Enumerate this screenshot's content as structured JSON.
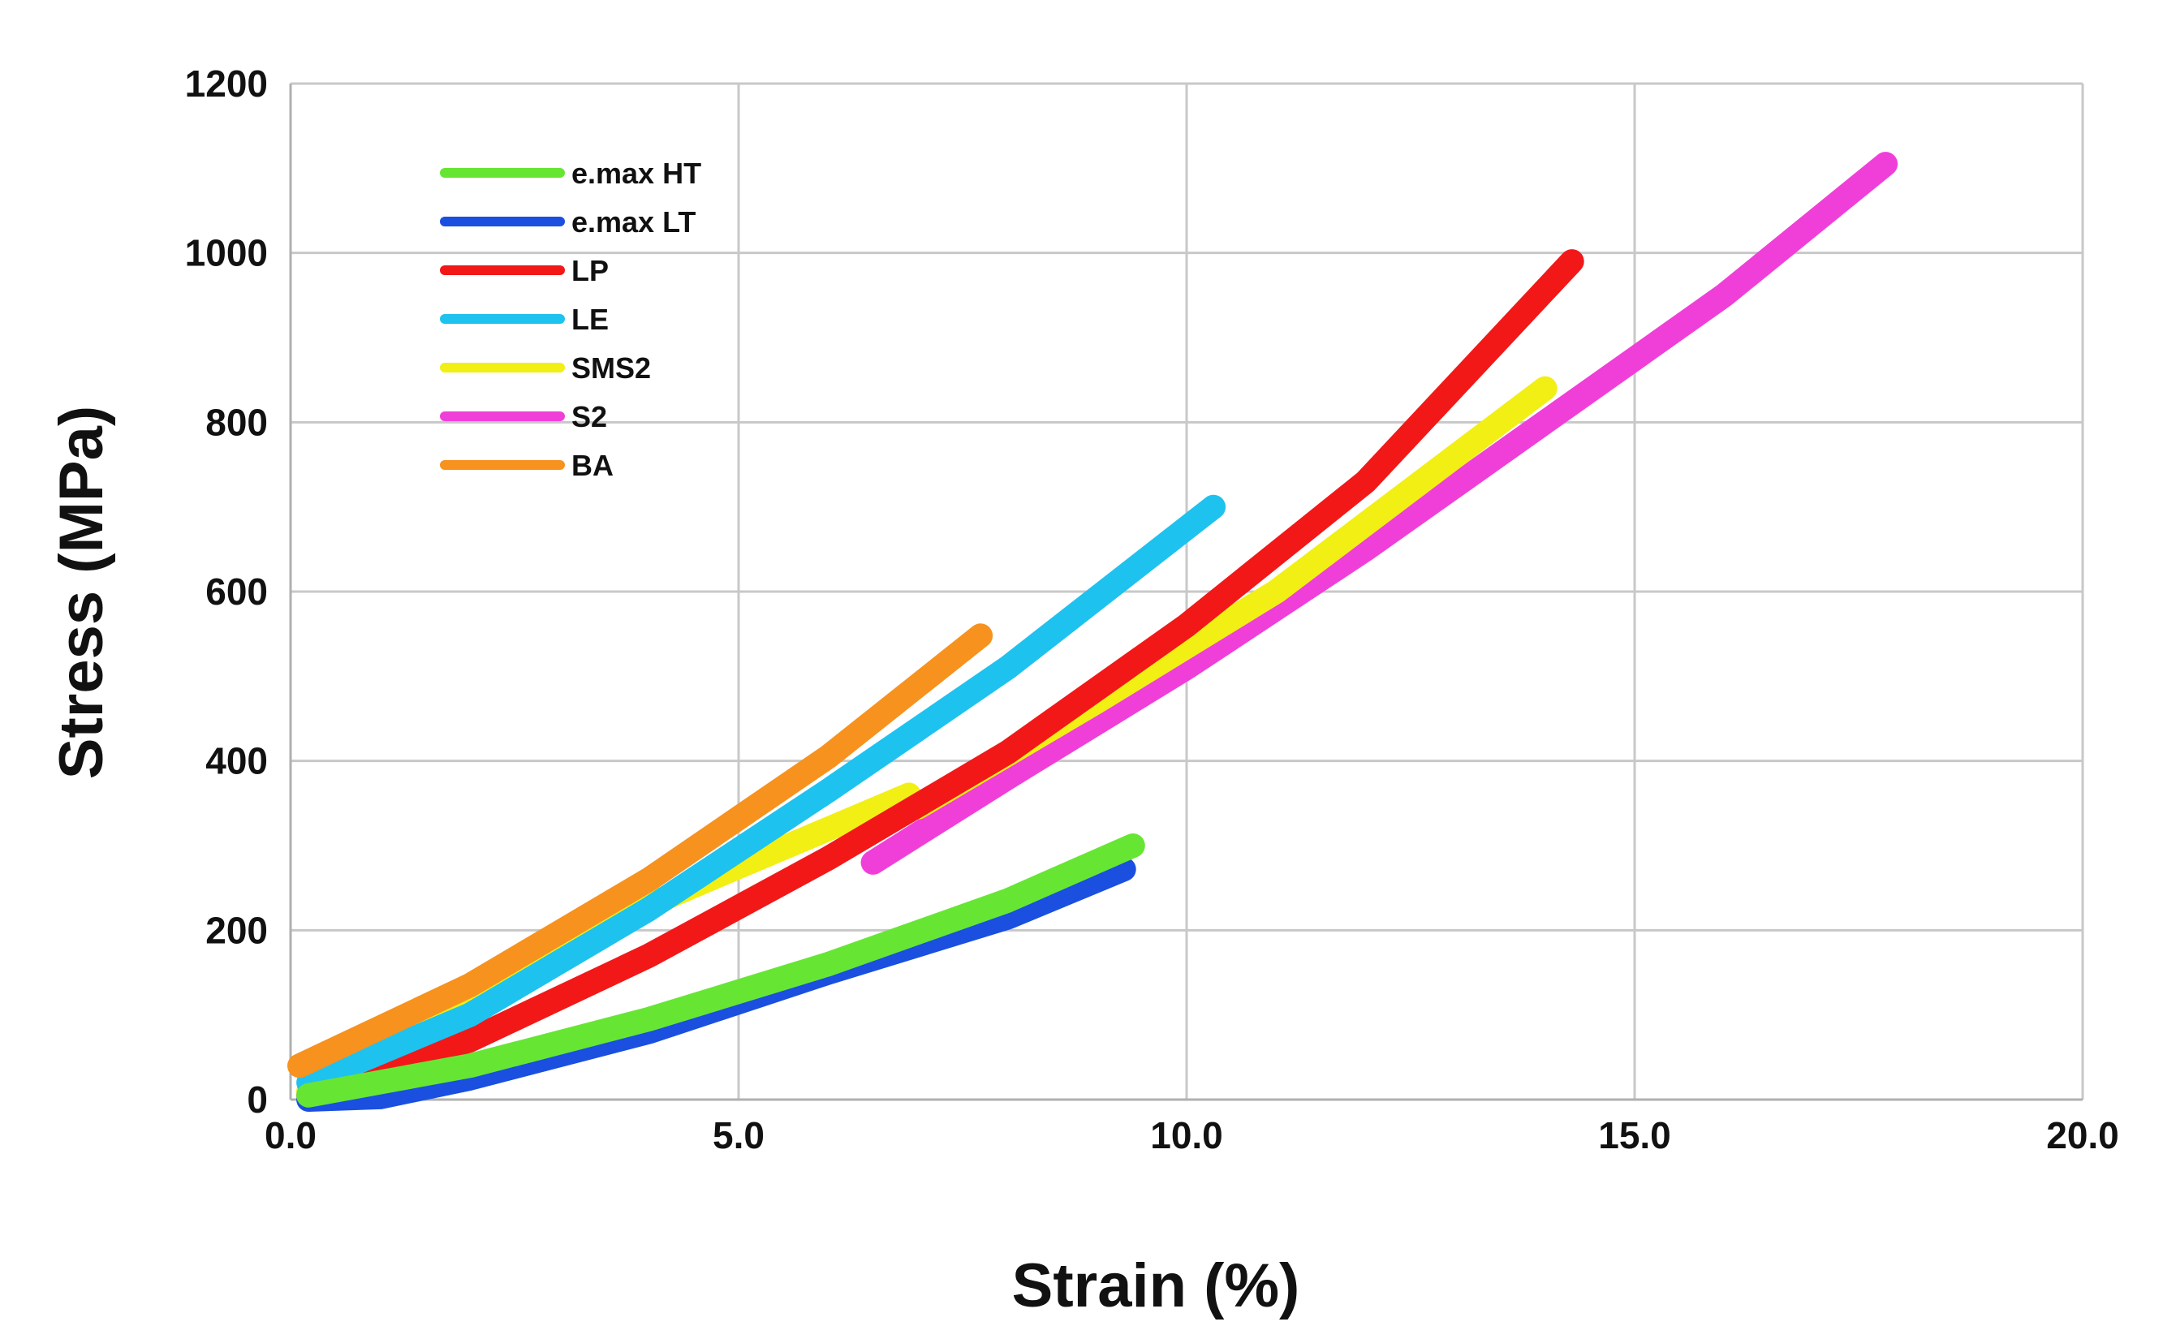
{
  "chart_data": {
    "type": "line",
    "title": "",
    "xlabel": "Strain  (%)",
    "ylabel": "Stress (MPa)",
    "xlim": [
      0,
      20
    ],
    "ylim": [
      0,
      1200
    ],
    "xticks": [
      0,
      5,
      10,
      15,
      20
    ],
    "xtick_labels": [
      "0.0",
      "5.0",
      "10.0",
      "15.0",
      "20.0"
    ],
    "yticks": [
      0,
      200,
      400,
      600,
      800,
      1000,
      1200
    ],
    "ytick_labels": [
      "0",
      "200",
      "400",
      "600",
      "800",
      "1000",
      "1200"
    ],
    "grid": true,
    "legend_position": "top-left",
    "series": [
      {
        "name": "e.max HT",
        "color": "#66e633",
        "points": [
          [
            0.2,
            5
          ],
          [
            2,
            40
          ],
          [
            4,
            95
          ],
          [
            6,
            160
          ],
          [
            8,
            235
          ],
          [
            9.4,
            300
          ]
        ]
      },
      {
        "name": "e.max LT",
        "color": "#1a4fe0",
        "points": [
          [
            0.2,
            0
          ],
          [
            1,
            3
          ],
          [
            2,
            25
          ],
          [
            4,
            80
          ],
          [
            6,
            150
          ],
          [
            8,
            215
          ],
          [
            9.3,
            272
          ]
        ]
      },
      {
        "name": "LP",
        "color": "#f21818",
        "points": [
          [
            0.2,
            5
          ],
          [
            2,
            70
          ],
          [
            4,
            170
          ],
          [
            6,
            285
          ],
          [
            8,
            410
          ],
          [
            10,
            560
          ],
          [
            12,
            730
          ],
          [
            14.3,
            990
          ]
        ]
      },
      {
        "name": "LE",
        "color": "#1ec2ef",
        "points": [
          [
            0.2,
            20
          ],
          [
            2,
            100
          ],
          [
            4,
            225
          ],
          [
            6,
            365
          ],
          [
            8,
            510
          ],
          [
            10.3,
            700
          ]
        ]
      },
      {
        "name": "SMS2",
        "color": "#f2ef14",
        "points": [
          [
            0.2,
            10
          ],
          [
            2,
            110
          ],
          [
            4,
            230
          ],
          [
            6.9,
            360
          ],
          [
            7,
            345
          ],
          [
            9,
            470
          ],
          [
            11,
            600
          ],
          [
            14,
            840
          ]
        ]
      },
      {
        "name": "S2",
        "color": "#f03fd9",
        "points": [
          [
            6.5,
            280
          ],
          [
            8,
            380
          ],
          [
            10,
            510
          ],
          [
            12,
            650
          ],
          [
            14,
            800
          ],
          [
            16,
            950
          ],
          [
            17.8,
            1105
          ]
        ]
      },
      {
        "name": "BA",
        "color": "#f7921e",
        "points": [
          [
            0.1,
            40
          ],
          [
            2,
            135
          ],
          [
            4,
            260
          ],
          [
            6,
            405
          ],
          [
            7.7,
            548
          ]
        ]
      }
    ]
  }
}
